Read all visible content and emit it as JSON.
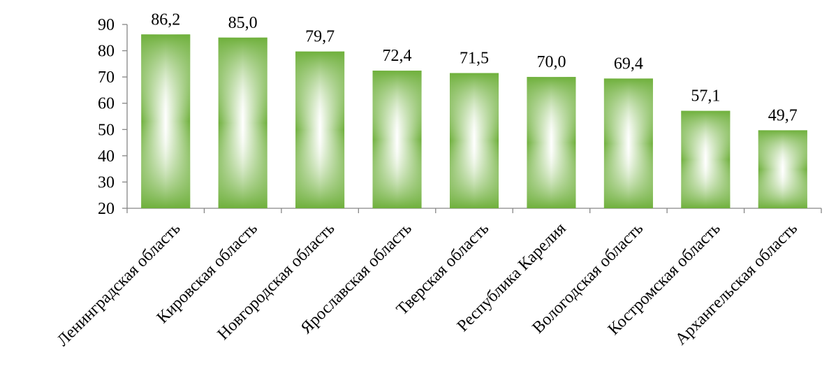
{
  "chart_data": {
    "type": "bar",
    "title": "",
    "xlabel": "",
    "ylabel": "",
    "categories": [
      "Ленинградская область",
      "Кировская область",
      "Новгородская область",
      "Ярославская область",
      "Тверская область",
      "Республика Карелия",
      "Вологодская область",
      "Костромская область",
      "Архангельская область"
    ],
    "values": [
      86.2,
      85.0,
      79.7,
      72.4,
      71.5,
      70.0,
      69.4,
      57.1,
      49.7
    ],
    "value_labels": [
      "86,2",
      "85,0",
      "79,7",
      "72,4",
      "71,5",
      "70,0",
      "69,4",
      "57,1",
      "49,7"
    ],
    "ylim": [
      20,
      90
    ],
    "yticks": [
      20,
      30,
      40,
      50,
      60,
      70,
      80,
      90
    ],
    "grid": false,
    "legend": "none",
    "colors": {
      "bar_edge": "#6fb03c",
      "bar_mid": "#ffffff",
      "axis": "#868686",
      "text": "#000000"
    }
  }
}
